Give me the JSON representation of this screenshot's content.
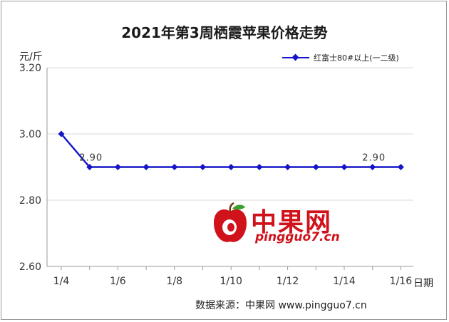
{
  "title": "2021年第3周栖霞苹果价格走势",
  "y_unit": "元/斤",
  "x_unit": "日期",
  "legend": {
    "label": "红富士80#以上(一二级)"
  },
  "source": "数据来源：中果网 www.pingguo7.cn",
  "watermark": {
    "cn": "中果网",
    "en": "pingguo7.cn"
  },
  "colors": {
    "series": "#1616c8",
    "axis": "#9a9a9a",
    "grid": "#d9d9d9",
    "watermark": "#d0121b"
  },
  "chart_data": {
    "type": "line",
    "title": "2021年第3周栖霞苹果价格走势",
    "xlabel": "日期",
    "ylabel": "元/斤",
    "ylim": [
      2.6,
      3.2
    ],
    "yticks": [
      "2.60",
      "2.80",
      "3.00",
      "3.20"
    ],
    "grid": true,
    "legend_position": "top-right",
    "x": [
      "1/4",
      "1/5",
      "1/6",
      "1/7",
      "1/8",
      "1/9",
      "1/10",
      "1/11",
      "1/12",
      "1/13",
      "1/14",
      "1/15",
      "1/16"
    ],
    "x_tick_labels": [
      "1/4",
      "1/6",
      "1/8",
      "1/10",
      "1/12",
      "1/14",
      "1/16"
    ],
    "series": [
      {
        "name": "红富士80#以上(一二级)",
        "values": [
          3.0,
          2.9,
          2.9,
          2.9,
          2.9,
          2.9,
          2.9,
          2.9,
          2.9,
          2.9,
          2.9,
          2.9,
          2.9
        ]
      }
    ],
    "data_labels": [
      {
        "index": 1,
        "text": "2.90"
      },
      {
        "index": 11,
        "text": "2.90"
      }
    ]
  }
}
